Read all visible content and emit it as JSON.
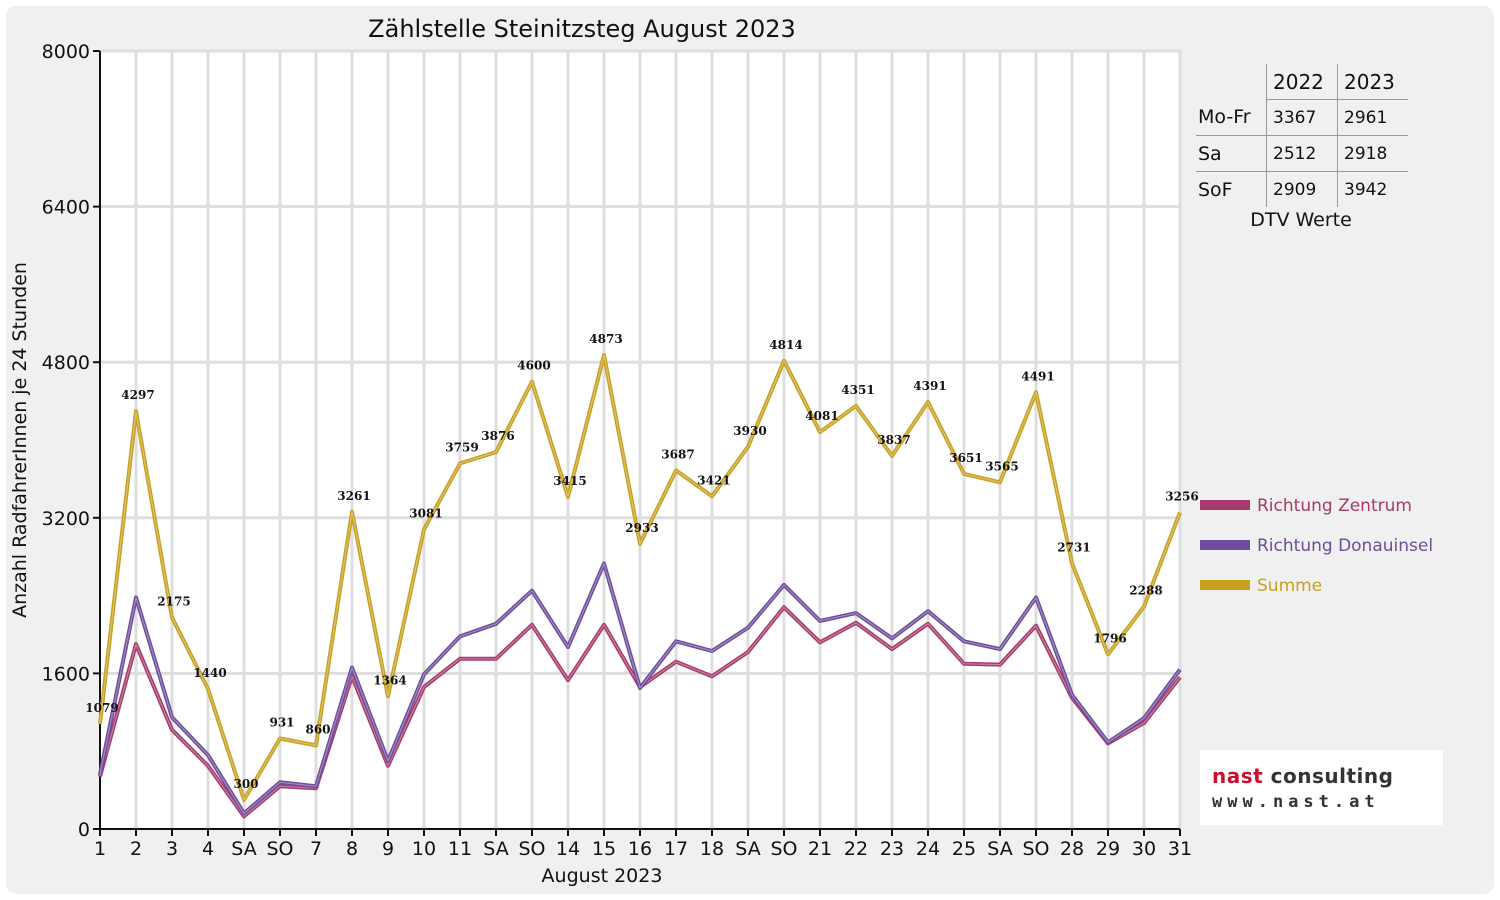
{
  "chart_data": {
    "type": "line",
    "title": "Zählstelle Steinitzsteg August 2023",
    "xlabel": "August 2023",
    "ylabel": "Anzahl RadfahrerInnen je 24 Stunden",
    "ylim": [
      0,
      8000
    ],
    "yticks": [
      "0",
      "1600",
      "3200",
      "4800",
      "6400",
      "8000"
    ],
    "grid": true,
    "legend_position": "right",
    "categories": [
      "1",
      "2",
      "3",
      "4",
      "SA",
      "SO",
      "7",
      "8",
      "9",
      "10",
      "11",
      "SA",
      "SO",
      "14",
      "15",
      "16",
      "17",
      "18",
      "SA",
      "SO",
      "21",
      "22",
      "23",
      "24",
      "25",
      "SA",
      "SO",
      "28",
      "29",
      "30",
      "31"
    ],
    "highlight_categories": [
      "SO",
      "15"
    ],
    "highlight_color": "#ee0000",
    "series": [
      {
        "name": "Richtung Zentrum",
        "color": "#a63a6b",
        "values": [
          540,
          1900,
          1020,
          650,
          130,
          440,
          420,
          1570,
          650,
          1460,
          1750,
          1750,
          2100,
          1530,
          2100,
          1460,
          1720,
          1570,
          1820,
          2280,
          1920,
          2120,
          1850,
          2110,
          1700,
          1690,
          2090,
          1350,
          880,
          1090,
          1560
        ]
      },
      {
        "name": "Richtung Donauinsel",
        "color": "#6e4c9c",
        "values": [
          560,
          2380,
          1150,
          760,
          160,
          480,
          440,
          1660,
          700,
          1590,
          1980,
          2110,
          2450,
          1870,
          2730,
          1450,
          1930,
          1830,
          2070,
          2510,
          2140,
          2220,
          1960,
          2240,
          1930,
          1850,
          2380,
          1380,
          890,
          1140,
          1640
        ]
      },
      {
        "name": "Summe",
        "color": "#c8a020",
        "values": [
          1079,
          4297,
          2175,
          1440,
          300,
          931,
          860,
          3261,
          1364,
          3081,
          3759,
          3876,
          4600,
          3415,
          4873,
          2933,
          3687,
          3421,
          3930,
          4814,
          4081,
          4351,
          3837,
          4391,
          3651,
          3565,
          4491,
          2731,
          1796,
          2288,
          3256
        ],
        "data_labels": [
          "1079",
          "4297",
          "2175",
          "1440",
          "300",
          "931",
          "860",
          "3261",
          "1364",
          "3081",
          "3759",
          "3876",
          "4600",
          "3415",
          "4873",
          "2933",
          "3687",
          "3421",
          "3930",
          "4814",
          "4081",
          "4351",
          "3837",
          "4391",
          "3651",
          "3565",
          "4491",
          "2731",
          "1796",
          "2288",
          "3256"
        ]
      }
    ]
  },
  "dtv_table": {
    "years": [
      "2022",
      "2023"
    ],
    "rows": [
      {
        "label": "Mo-Fr",
        "v2022": "3367",
        "v2023": "2961"
      },
      {
        "label": "Sa",
        "v2022": "2512",
        "v2023": "2918"
      },
      {
        "label": "SoF",
        "v2022": "2909",
        "v2023": "3942"
      }
    ],
    "caption": "DTV Werte"
  },
  "logo": {
    "brand_part1": "nast",
    "brand_part2": " consulting",
    "url": "www.nast.at",
    "colors": {
      "accent": "#c8102e",
      "dark": "#333333"
    }
  }
}
